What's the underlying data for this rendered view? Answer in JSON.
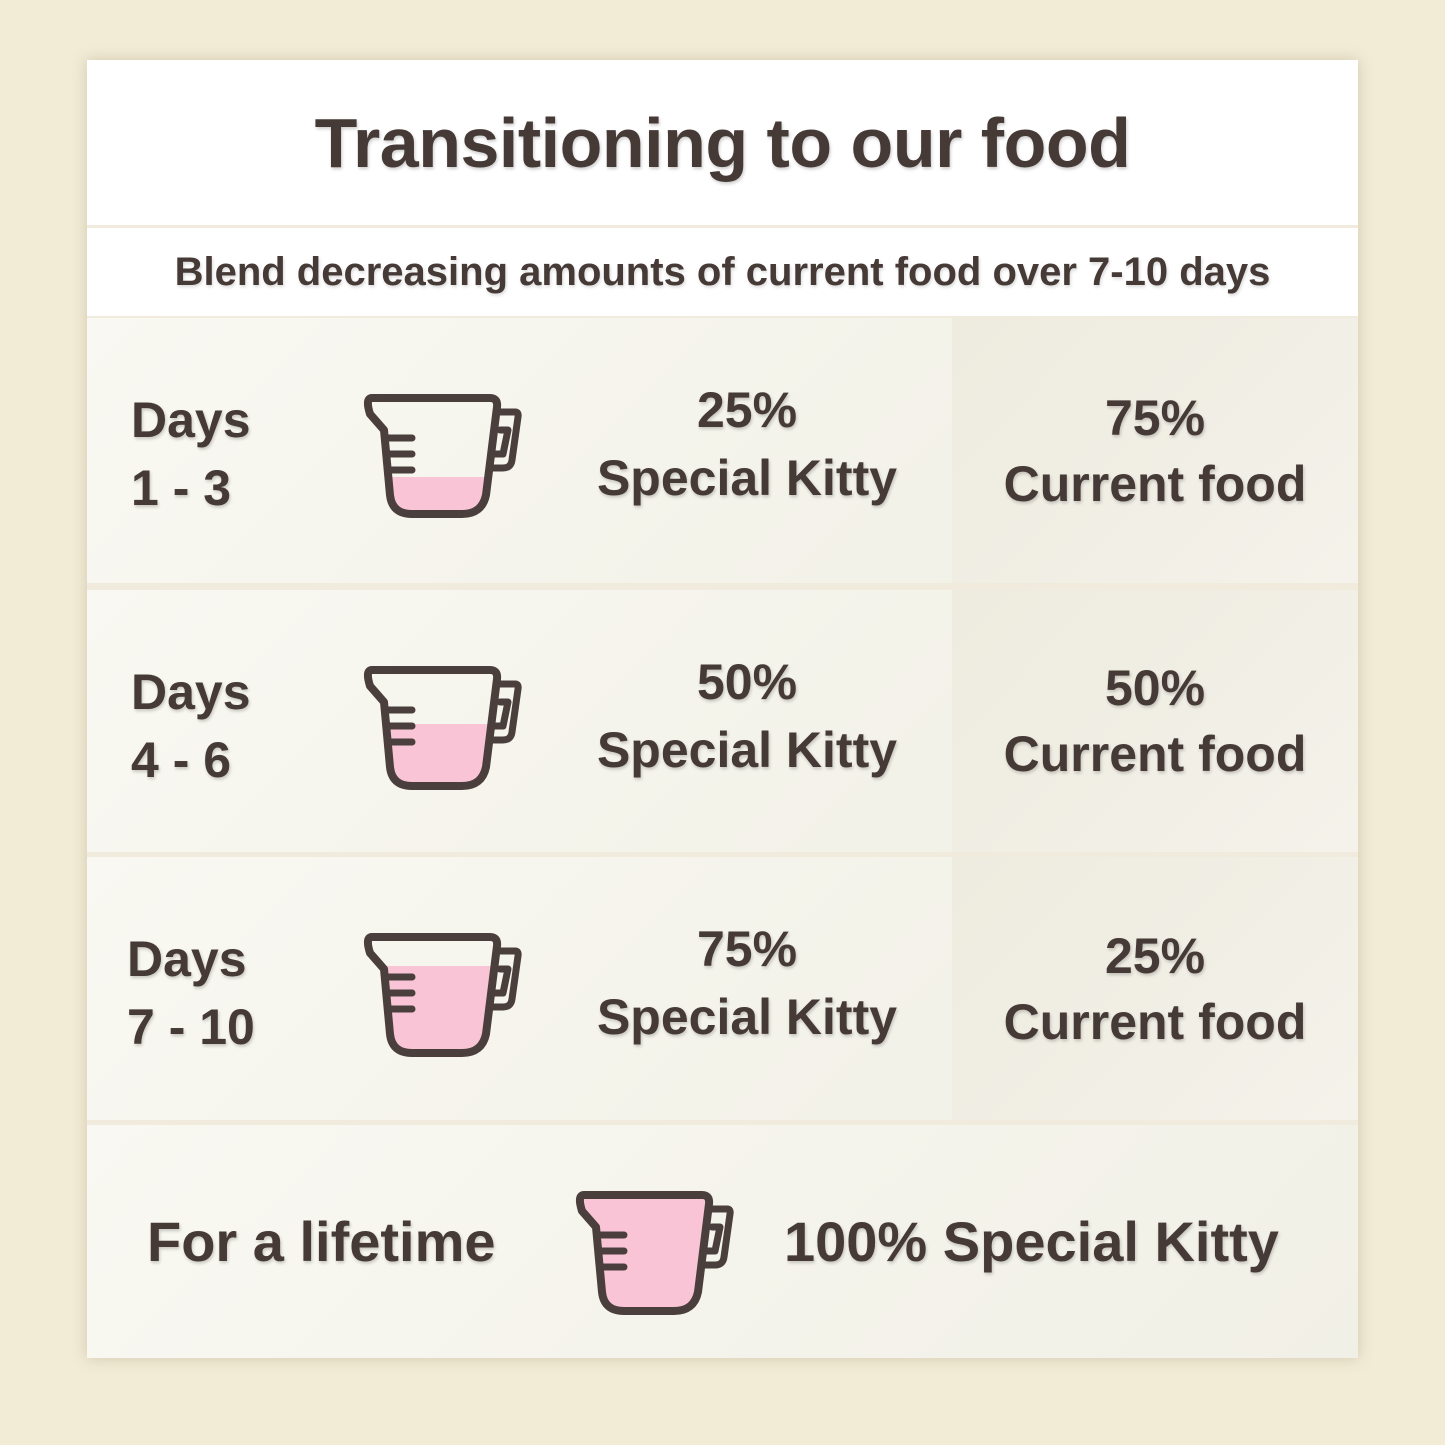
{
  "title": "Transitioning to our food",
  "subtitle": "Blend decreasing amounts of current food over 7-10 days",
  "colors": {
    "background": "#f2ebd6",
    "text": "#463a37",
    "cup_fill": "#f9c5d6",
    "cup_outline": "#4a3f3c"
  },
  "rows": [
    {
      "days_label": "Days",
      "days_range": "1 - 3",
      "new_pct": "25%",
      "new_label": "Special Kitty",
      "current_pct": "75%",
      "current_label": "Current food",
      "cup_icon": "measuring-cup-icon",
      "cup_fill_fraction": 0.25
    },
    {
      "days_label": "Days",
      "days_range": "4 - 6",
      "new_pct": "50%",
      "new_label": "Special Kitty",
      "current_pct": "50%",
      "current_label": "Current food",
      "cup_icon": "measuring-cup-icon",
      "cup_fill_fraction": 0.5
    },
    {
      "days_label": "Days",
      "days_range": "7 - 10",
      "new_pct": "75%",
      "new_label": "Special Kitty",
      "current_pct": "25%",
      "current_label": "Current food",
      "cup_icon": "measuring-cup-icon",
      "cup_fill_fraction": 0.75
    }
  ],
  "final": {
    "label": "For a lifetime",
    "value": "100% Special Kitty",
    "cup_icon": "measuring-cup-icon",
    "cup_fill_fraction": 1.0
  }
}
